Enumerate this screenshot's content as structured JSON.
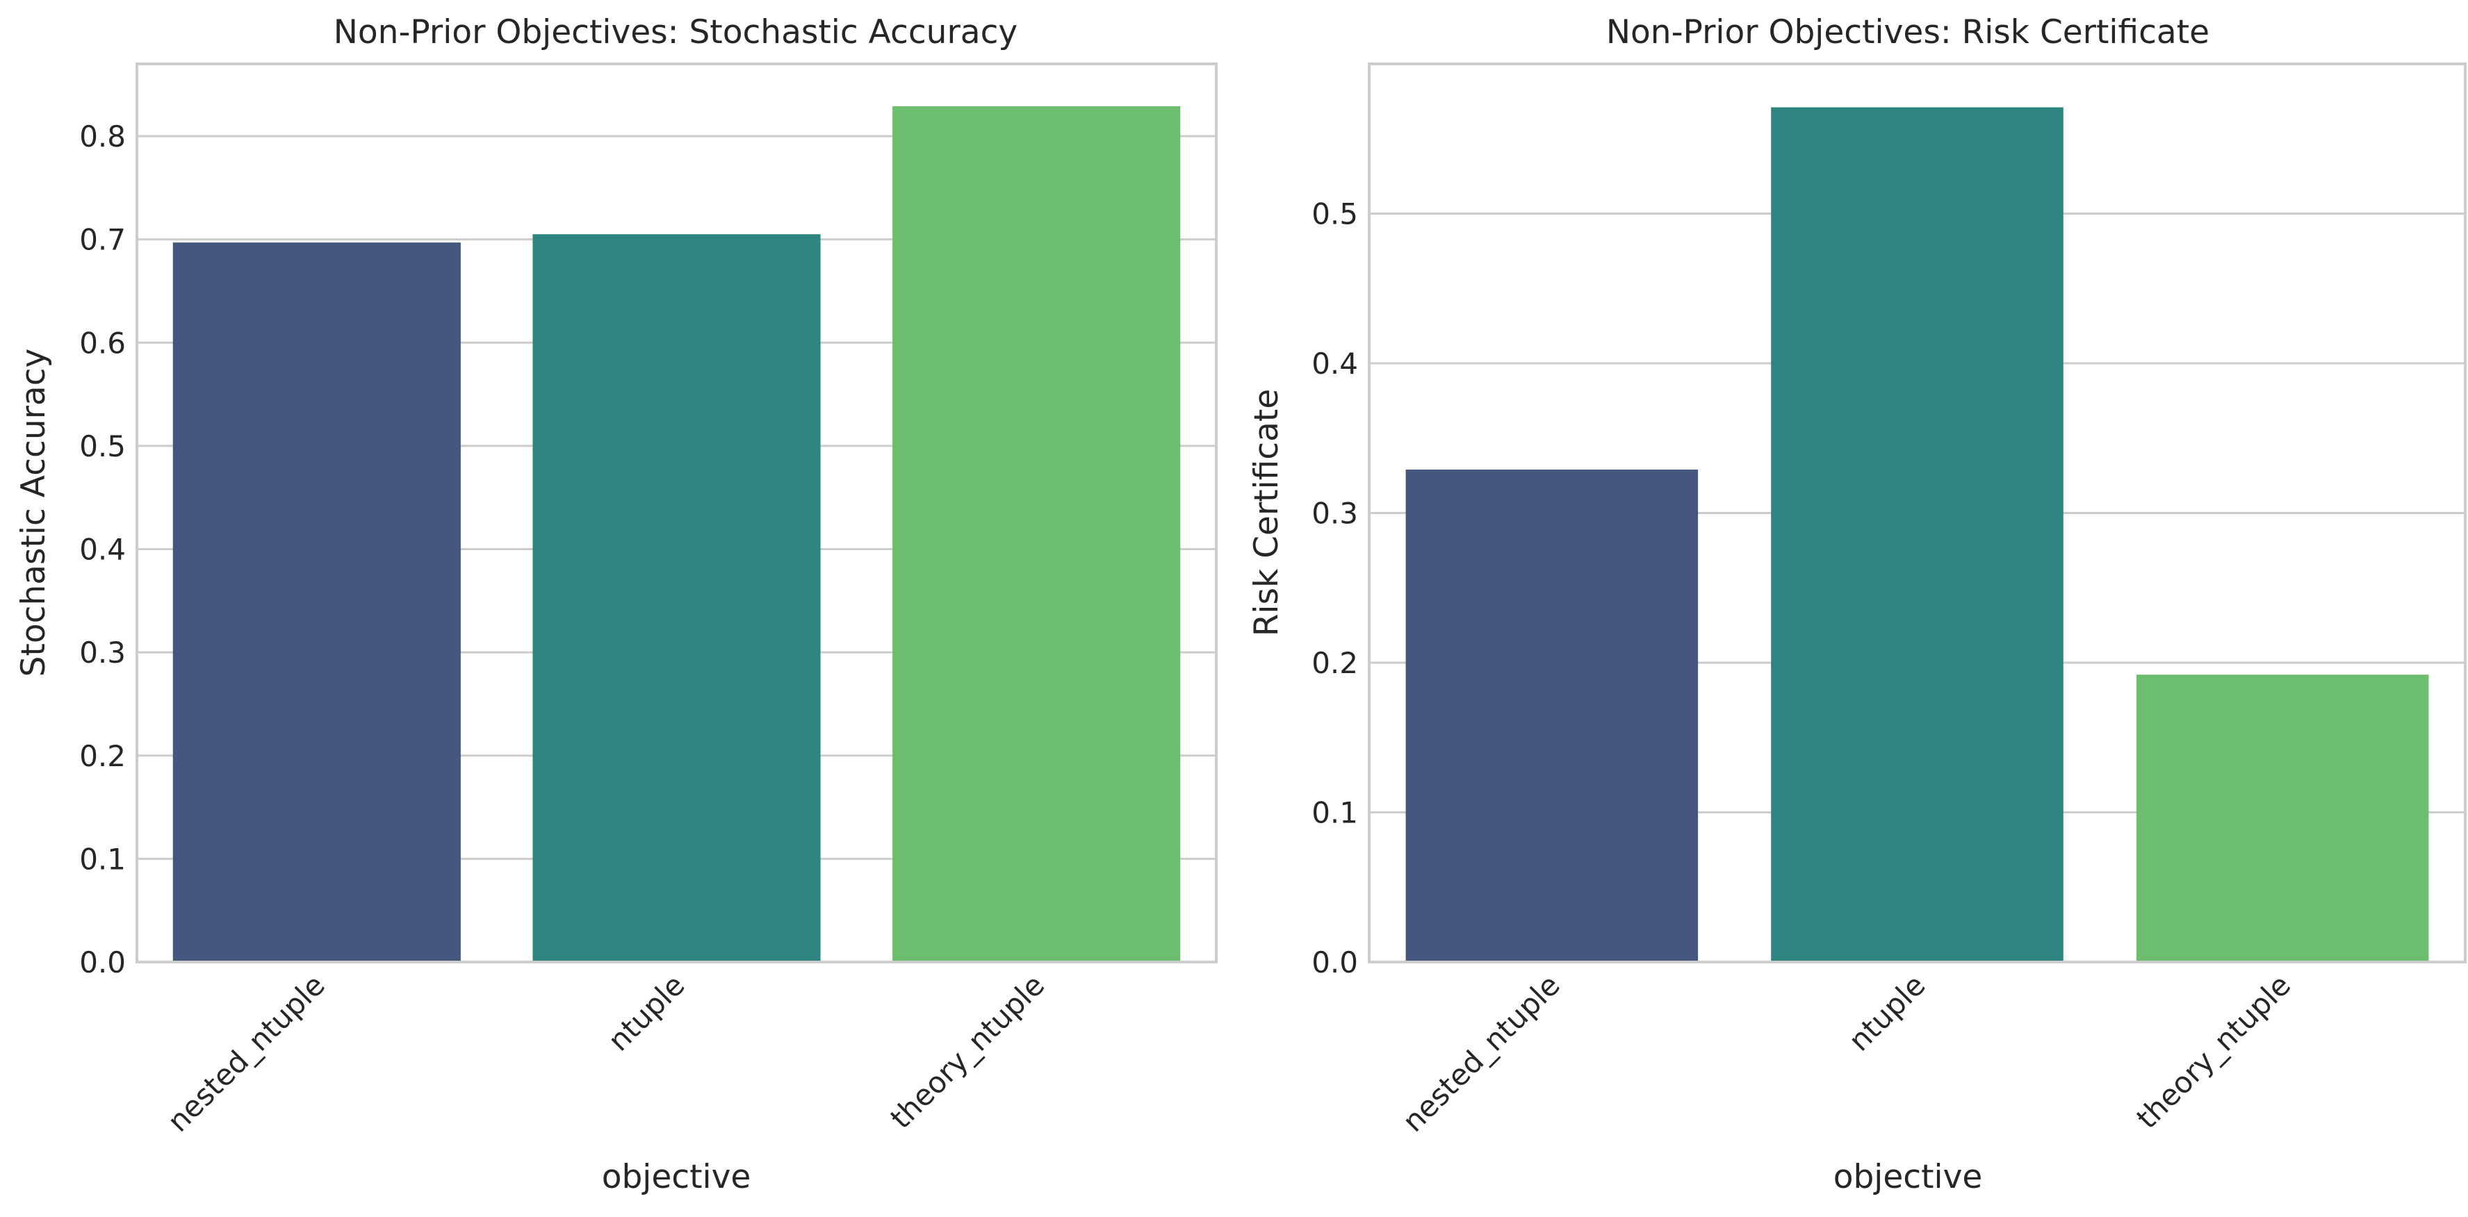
{
  "chart_data": [
    {
      "type": "bar",
      "title": "Non-Prior Objectives: Stochastic Accuracy",
      "xlabel": "objective",
      "ylabel": "Stochastic Accuracy",
      "categories": [
        "nested_ntuple",
        "ntuple",
        "theory_ntuple"
      ],
      "values": [
        0.697,
        0.705,
        0.829
      ],
      "colors": [
        "#46577f",
        "#2e847e",
        "#6dbd6f"
      ],
      "ylim": [
        0,
        0.87
      ],
      "yticks": [
        0.0,
        0.1,
        0.2,
        0.3,
        0.4,
        0.5,
        0.6,
        0.7,
        0.8
      ],
      "ytick_labels": [
        "0.0",
        "0.1",
        "0.2",
        "0.3",
        "0.4",
        "0.5",
        "0.6",
        "0.7",
        "0.8"
      ],
      "grid": "y",
      "x_tick_rotation": 45
    },
    {
      "type": "bar",
      "title": "Non-Prior Objectives: Risk Certificate",
      "xlabel": "objective",
      "ylabel": "Risk Certificate",
      "categories": [
        "nested_ntuple",
        "ntuple",
        "theory_ntuple"
      ],
      "values": [
        0.329,
        0.571,
        0.192
      ],
      "colors": [
        "#46577f",
        "#2e847e",
        "#6dbd6f"
      ],
      "ylim": [
        0,
        0.6
      ],
      "yticks": [
        0.0,
        0.1,
        0.2,
        0.3,
        0.4,
        0.5
      ],
      "ytick_labels": [
        "0.0",
        "0.1",
        "0.2",
        "0.3",
        "0.4",
        "0.5"
      ],
      "grid": "y",
      "x_tick_rotation": 45
    }
  ]
}
